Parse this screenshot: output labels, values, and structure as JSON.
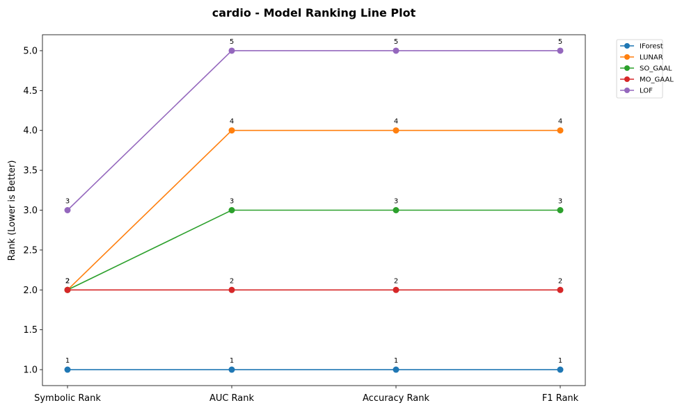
{
  "chart_data": {
    "type": "line",
    "title": "cardio - Model Ranking Line Plot",
    "xlabel": "",
    "ylabel": "Rank (Lower is Better)",
    "categories": [
      "Symbolic Rank",
      "AUC Rank",
      "Accuracy Rank",
      "F1 Rank"
    ],
    "ylim": [
      0.8,
      5.2
    ],
    "yticks": [
      1.0,
      1.5,
      2.0,
      2.5,
      3.0,
      3.5,
      4.0,
      4.5,
      5.0
    ],
    "ytick_labels": [
      "1.0",
      "1.5",
      "2.0",
      "2.5",
      "3.0",
      "3.5",
      "4.0",
      "4.5",
      "5.0"
    ],
    "grid": false,
    "legend_position": "outside-top-right",
    "series": [
      {
        "name": "IForest",
        "color": "#1f77b4",
        "values": [
          1,
          1,
          1,
          1
        ]
      },
      {
        "name": "LUNAR",
        "color": "#ff7f0e",
        "values": [
          2,
          4,
          4,
          4
        ]
      },
      {
        "name": "SO_GAAL",
        "color": "#2ca02c",
        "values": [
          2,
          3,
          3,
          3
        ]
      },
      {
        "name": "MO_GAAL",
        "color": "#d62728",
        "values": [
          2,
          2,
          2,
          2
        ]
      },
      {
        "name": "LOF",
        "color": "#9467bd",
        "values": [
          3,
          5,
          5,
          5
        ]
      }
    ]
  }
}
